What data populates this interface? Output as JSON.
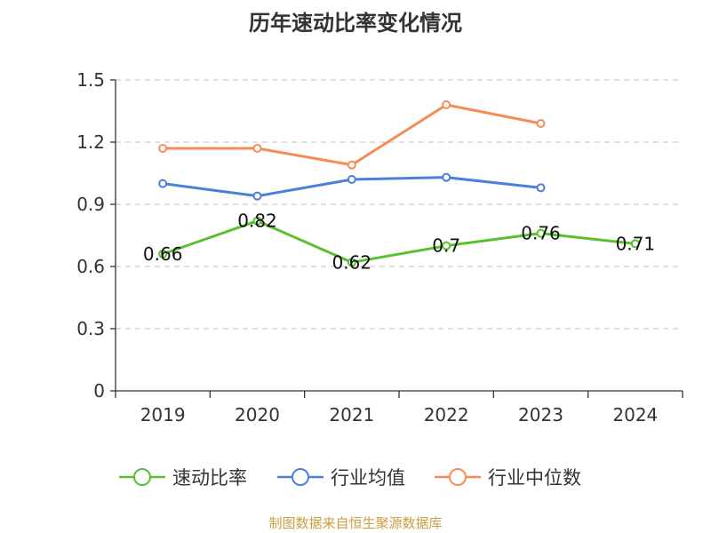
{
  "chart_data": {
    "type": "line",
    "title": "历年速动比率变化情况",
    "categories": [
      "2019",
      "2020",
      "2021",
      "2022",
      "2023",
      "2024"
    ],
    "y_ticks": [
      "0",
      "0.3",
      "0.6",
      "0.9",
      "1.2",
      "1.5"
    ],
    "ylim": [
      0,
      1.5
    ],
    "grid": true,
    "legend_position": "bottom",
    "series": [
      {
        "name": "速动比率",
        "color": "#5ac12e",
        "values": [
          0.66,
          0.82,
          0.62,
          0.7,
          0.76,
          0.71
        ],
        "labels": [
          "0.66",
          "0.82",
          "0.62",
          "0.7",
          "0.76",
          "0.71"
        ]
      },
      {
        "name": "行业均值",
        "color": "#4a7fdc",
        "values": [
          1.0,
          0.94,
          1.02,
          1.03,
          0.98,
          null
        ]
      },
      {
        "name": "行业中位数",
        "color": "#f58c57",
        "values": [
          1.17,
          1.17,
          1.09,
          1.38,
          1.29,
          null
        ]
      }
    ]
  },
  "source_note": "制图数据来自恒生聚源数据库"
}
